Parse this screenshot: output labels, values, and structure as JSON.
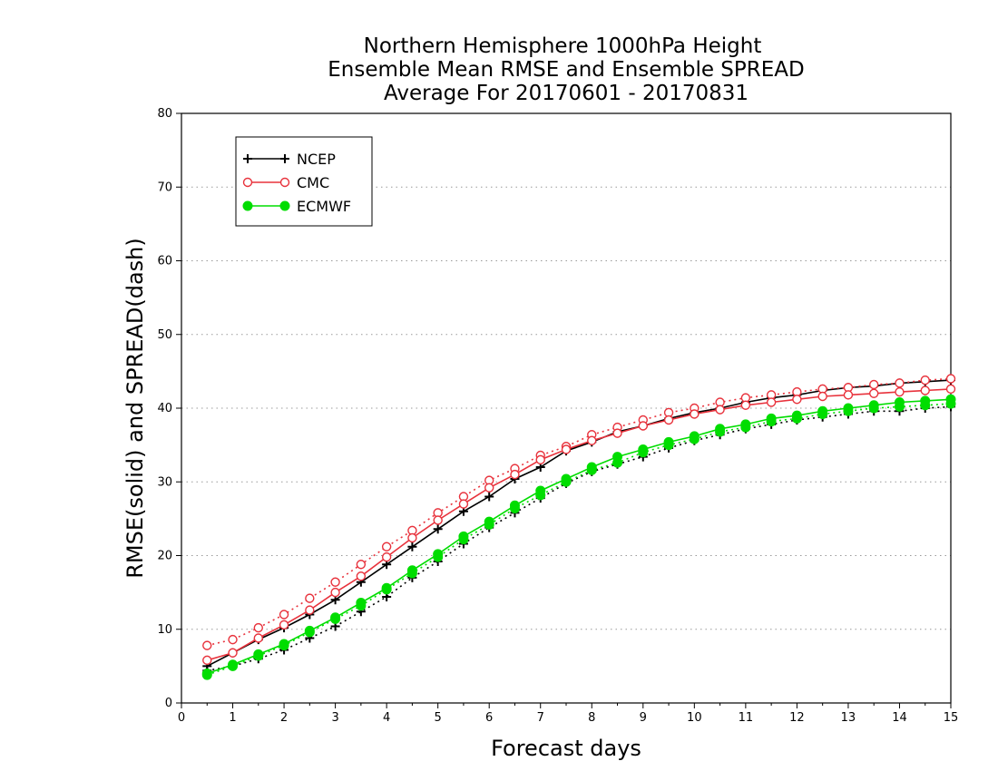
{
  "chart_data": {
    "type": "line",
    "title_lines": [
      "Northern Hemisphere 1000hPa Height",
      "Ensemble Mean RMSE and Ensemble SPREAD",
      "Average For 20170601 - 20170831"
    ],
    "xlabel": "Forecast days",
    "ylabel": "RMSE(solid) and SPREAD(dash)",
    "xlim": [
      0,
      15
    ],
    "ylim": [
      0,
      80
    ],
    "x_ticks": [
      0,
      1,
      2,
      3,
      4,
      5,
      6,
      7,
      8,
      9,
      10,
      11,
      12,
      13,
      14,
      15
    ],
    "y_ticks": [
      0,
      10,
      20,
      30,
      40,
      50,
      60,
      70,
      80
    ],
    "grid": "horizontal dotted",
    "legend_position": "top-left",
    "x": [
      0.5,
      1,
      1.5,
      2,
      2.5,
      3,
      3.5,
      4,
      4.5,
      5,
      5.5,
      6,
      6.5,
      7,
      7.5,
      8,
      8.5,
      9,
      9.5,
      10,
      10.5,
      11,
      11.5,
      12,
      12.5,
      13,
      13.5,
      14,
      14.5,
      15
    ],
    "series": [
      {
        "name": "NCEP",
        "color": "#000000",
        "marker": "plus",
        "rmse": [
          5.0,
          6.8,
          8.6,
          10.2,
          12.0,
          14.0,
          16.4,
          18.8,
          21.2,
          23.6,
          26.0,
          28.0,
          30.4,
          32.0,
          34.2,
          35.4,
          36.8,
          37.6,
          38.6,
          39.4,
          40.0,
          40.8,
          41.4,
          41.8,
          42.4,
          42.8,
          43.0,
          43.4,
          43.6,
          43.8
        ],
        "spread": [
          4.4,
          5.0,
          6.0,
          7.2,
          8.8,
          10.4,
          12.4,
          14.4,
          17.0,
          19.2,
          21.6,
          23.8,
          25.8,
          27.8,
          29.8,
          31.4,
          32.4,
          33.4,
          34.6,
          35.6,
          36.4,
          37.2,
          37.8,
          38.4,
          38.8,
          39.2,
          39.6,
          39.6,
          40.0,
          40.2
        ]
      },
      {
        "name": "CMC",
        "color": "#e8323c",
        "marker": "open-circle",
        "rmse": [
          5.8,
          6.8,
          8.8,
          10.6,
          12.6,
          15.0,
          17.2,
          19.8,
          22.4,
          24.8,
          27.0,
          29.2,
          31.0,
          33.0,
          34.4,
          35.6,
          36.6,
          37.6,
          38.4,
          39.2,
          39.8,
          40.4,
          40.8,
          41.2,
          41.6,
          41.8,
          42.0,
          42.2,
          42.4,
          42.6
        ],
        "spread": [
          7.8,
          8.6,
          10.2,
          12.0,
          14.2,
          16.4,
          18.8,
          21.2,
          23.4,
          25.8,
          28.0,
          30.2,
          31.8,
          33.6,
          34.8,
          36.4,
          37.4,
          38.4,
          39.4,
          40.0,
          40.8,
          41.4,
          41.8,
          42.2,
          42.6,
          42.8,
          43.2,
          43.4,
          43.8,
          44.0
        ]
      },
      {
        "name": "ECMWF",
        "color": "#00dd00",
        "marker": "filled-circle",
        "rmse": [
          4.0,
          5.2,
          6.6,
          8.0,
          9.8,
          11.6,
          13.6,
          15.6,
          18.0,
          20.2,
          22.6,
          24.6,
          26.8,
          28.8,
          30.4,
          32.0,
          33.4,
          34.4,
          35.4,
          36.2,
          37.2,
          37.8,
          38.6,
          39.0,
          39.6,
          40.0,
          40.4,
          40.8,
          41.0,
          41.2
        ],
        "spread": [
          3.8,
          5.0,
          6.4,
          7.8,
          9.6,
          11.4,
          13.2,
          15.4,
          17.6,
          19.8,
          22.2,
          24.2,
          26.4,
          28.2,
          30.0,
          31.6,
          32.6,
          34.0,
          35.0,
          35.8,
          36.8,
          37.4,
          38.2,
          38.6,
          39.2,
          39.6,
          40.0,
          40.2,
          40.4,
          40.6
        ]
      }
    ]
  }
}
